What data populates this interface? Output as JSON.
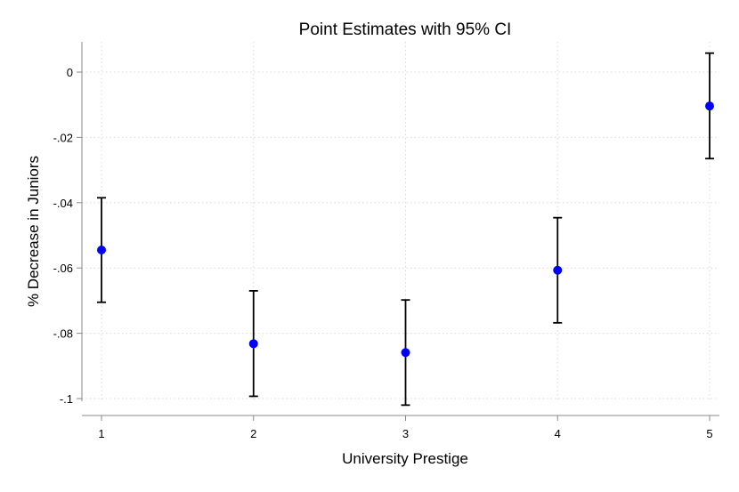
{
  "chart_data": {
    "type": "scatter",
    "title": "Point Estimates with 95% CI",
    "xlabel": "University Prestige",
    "ylabel": "% Decrease in Juniors",
    "x_ticks": [
      "1",
      "2",
      "3",
      "4",
      "5"
    ],
    "y_ticks": [
      "0",
      "-.02",
      "-.04",
      "-.06",
      "-.08",
      "-.1"
    ],
    "y_tick_values": [
      0,
      -0.02,
      -0.04,
      -0.06,
      -0.08,
      -0.1
    ],
    "xlim": [
      1,
      5
    ],
    "ylim": [
      -0.1,
      0
    ],
    "grid": true,
    "point_color": "#0000ff",
    "error_bar_color": "#000000",
    "points": [
      {
        "x": 1,
        "y": -0.0545,
        "ci_low": -0.0705,
        "ci_high": -0.0385
      },
      {
        "x": 2,
        "y": -0.0832,
        "ci_low": -0.0993,
        "ci_high": -0.067
      },
      {
        "x": 3,
        "y": -0.0859,
        "ci_low": -0.102,
        "ci_high": -0.0698
      },
      {
        "x": 4,
        "y": -0.0607,
        "ci_low": -0.0768,
        "ci_high": -0.0446
      },
      {
        "x": 5,
        "y": -0.0104,
        "ci_low": -0.0265,
        "ci_high": 0.0058
      }
    ]
  }
}
